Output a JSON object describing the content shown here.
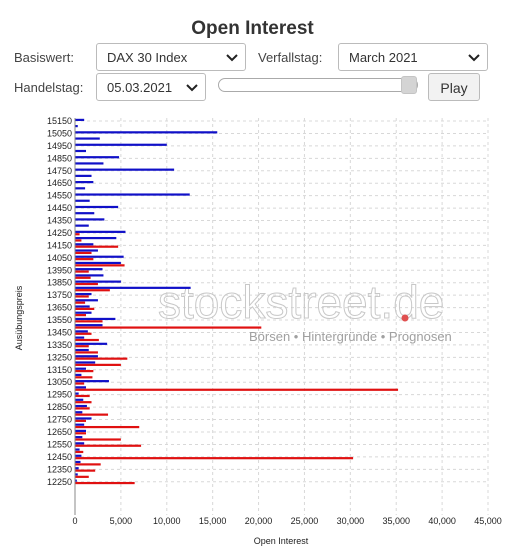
{
  "header": {
    "title": "Open Interest"
  },
  "controls": {
    "basiswert_label": "Basiswert:",
    "basiswert_value": "DAX 30 Index",
    "verfallstag_label": "Verfallstag:",
    "verfallstag_value": "March 2021",
    "handelstag_label": "Handelstag:",
    "handelstag_value": "05.03.2021",
    "play_label": "Play",
    "slider_position": 1.0
  },
  "watermark": {
    "brand": "stockstreet.de",
    "tagline": "Börsen • Hintergründe • Prognosen",
    "accent_color": "#e05050"
  },
  "chart_data": {
    "type": "bar",
    "orientation": "horizontal",
    "ylabel": "Ausübungspreis",
    "xlabel": "Open Interest",
    "xlim": [
      0,
      45000
    ],
    "x_ticks": [
      0,
      5000,
      10000,
      15000,
      20000,
      25000,
      30000,
      35000,
      40000,
      45000
    ],
    "x_tick_labels": [
      "0",
      "5,000",
      "10,000",
      "15,000",
      "20,000",
      "25,000",
      "30,000",
      "35,000",
      "40,000",
      "45,000"
    ],
    "y_tick_labels": [
      "15150",
      "15050",
      "14950",
      "14850",
      "14750",
      "14650",
      "14550",
      "14450",
      "14350",
      "14250",
      "14150",
      "14050",
      "13950",
      "13850",
      "13750",
      "13650",
      "13550",
      "13450",
      "13350",
      "13250",
      "13150",
      "13050",
      "12950",
      "12850",
      "12750",
      "12650",
      "12550",
      "12450",
      "12350",
      "12250"
    ],
    "grid": true,
    "categories": [
      15150,
      15100,
      15050,
      15000,
      14950,
      14900,
      14850,
      14800,
      14750,
      14700,
      14650,
      14600,
      14550,
      14500,
      14450,
      14400,
      14350,
      14300,
      14250,
      14200,
      14150,
      14100,
      14050,
      14000,
      13950,
      13900,
      13850,
      13800,
      13750,
      13700,
      13650,
      13600,
      13550,
      13500,
      13450,
      13400,
      13350,
      13300,
      13250,
      13200,
      13150,
      13100,
      13050,
      13000,
      12950,
      12900,
      12850,
      12800,
      12750,
      12700,
      12650,
      12600,
      12550,
      12500,
      12450,
      12400,
      12350,
      12300,
      12250
    ],
    "series": [
      {
        "color": "#1010c8",
        "values": [
          1000,
          300,
          15500,
          2700,
          10000,
          1200,
          4800,
          3100,
          10800,
          1800,
          2000,
          1100,
          12500,
          1600,
          4700,
          2100,
          3200,
          1500,
          5500,
          4500,
          2000,
          2500,
          5300,
          5000,
          3000,
          3100,
          5000,
          12600,
          1800,
          2500,
          1600,
          1800,
          4400,
          3000,
          1400,
          1000,
          3500,
          1500,
          2500,
          2200,
          1200,
          700,
          3700,
          1200,
          400,
          900,
          1300,
          800,
          1800,
          1000,
          1200,
          800,
          1000,
          500,
          700,
          600,
          400,
          300,
          200
        ]
      },
      {
        "color": "#e01010",
        "values": [
          0,
          0,
          0,
          0,
          0,
          0,
          0,
          0,
          0,
          0,
          0,
          0,
          0,
          0,
          0,
          0,
          0,
          0,
          500,
          700,
          4700,
          1800,
          2000,
          5400,
          1500,
          1700,
          2500,
          3800,
          1500,
          1100,
          2100,
          1200,
          3000,
          20300,
          1800,
          2600,
          1500,
          2500,
          5700,
          5000,
          2000,
          1900,
          1000,
          35200,
          1600,
          1800,
          1600,
          3600,
          1200,
          7000,
          1200,
          5000,
          7200,
          900,
          30300,
          2800,
          2200,
          1500,
          6500
        ]
      }
    ]
  }
}
